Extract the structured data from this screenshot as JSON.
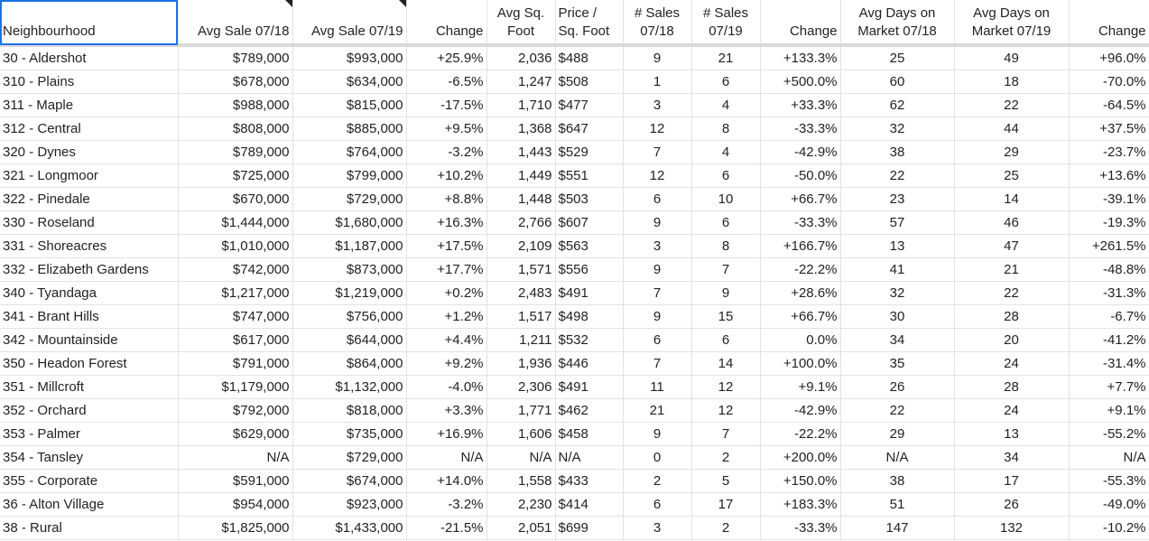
{
  "headers": [
    "Neighbourhood",
    "Avg Sale 07/18",
    "Avg Sale 07/19",
    "Change",
    "Avg Sq. Foot",
    "Price / Sq. Foot",
    "# Sales 07/18",
    "# Sales 07/19",
    "Change",
    "Avg Days on Market 07/18",
    "Avg Days on Market 07/19",
    "Change"
  ],
  "rows": [
    [
      "30 - Aldershot",
      "$789,000",
      "$993,000",
      "+25.9%",
      "2,036",
      "$488",
      "9",
      "21",
      "+133.3%",
      "25",
      "49",
      "+96.0%"
    ],
    [
      "310 - Plains",
      "$678,000",
      "$634,000",
      "-6.5%",
      "1,247",
      "$508",
      "1",
      "6",
      "+500.0%",
      "60",
      "18",
      "-70.0%"
    ],
    [
      "311 - Maple",
      "$988,000",
      "$815,000",
      "-17.5%",
      "1,710",
      "$477",
      "3",
      "4",
      "+33.3%",
      "62",
      "22",
      "-64.5%"
    ],
    [
      "312 - Central",
      "$808,000",
      "$885,000",
      "+9.5%",
      "1,368",
      "$647",
      "12",
      "8",
      "-33.3%",
      "32",
      "44",
      "+37.5%"
    ],
    [
      "320 - Dynes",
      "$789,000",
      "$764,000",
      "-3.2%",
      "1,443",
      "$529",
      "7",
      "4",
      "-42.9%",
      "38",
      "29",
      "-23.7%"
    ],
    [
      "321 - Longmoor",
      "$725,000",
      "$799,000",
      "+10.2%",
      "1,449",
      "$551",
      "12",
      "6",
      "-50.0%",
      "22",
      "25",
      "+13.6%"
    ],
    [
      "322 - Pinedale",
      "$670,000",
      "$729,000",
      "+8.8%",
      "1,448",
      "$503",
      "6",
      "10",
      "+66.7%",
      "23",
      "14",
      "-39.1%"
    ],
    [
      "330 - Roseland",
      "$1,444,000",
      "$1,680,000",
      "+16.3%",
      "2,766",
      "$607",
      "9",
      "6",
      "-33.3%",
      "57",
      "46",
      "-19.3%"
    ],
    [
      "331 - Shoreacres",
      "$1,010,000",
      "$1,187,000",
      "+17.5%",
      "2,109",
      "$563",
      "3",
      "8",
      "+166.7%",
      "13",
      "47",
      "+261.5%"
    ],
    [
      "332 - Elizabeth Gardens",
      "$742,000",
      "$873,000",
      "+17.7%",
      "1,571",
      "$556",
      "9",
      "7",
      "-22.2%",
      "41",
      "21",
      "-48.8%"
    ],
    [
      "340 - Tyandaga",
      "$1,217,000",
      "$1,219,000",
      "+0.2%",
      "2,483",
      "$491",
      "7",
      "9",
      "+28.6%",
      "32",
      "22",
      "-31.3%"
    ],
    [
      "341 - Brant Hills",
      "$747,000",
      "$756,000",
      "+1.2%",
      "1,517",
      "$498",
      "9",
      "15",
      "+66.7%",
      "30",
      "28",
      "-6.7%"
    ],
    [
      "342 - Mountainside",
      "$617,000",
      "$644,000",
      "+4.4%",
      "1,211",
      "$532",
      "6",
      "6",
      "0.0%",
      "34",
      "20",
      "-41.2%"
    ],
    [
      "350 - Headon Forest",
      "$791,000",
      "$864,000",
      "+9.2%",
      "1,936",
      "$446",
      "7",
      "14",
      "+100.0%",
      "35",
      "24",
      "-31.4%"
    ],
    [
      "351 - Millcroft",
      "$1,179,000",
      "$1,132,000",
      "-4.0%",
      "2,306",
      "$491",
      "11",
      "12",
      "+9.1%",
      "26",
      "28",
      "+7.7%"
    ],
    [
      "352 - Orchard",
      "$792,000",
      "$818,000",
      "+3.3%",
      "1,771",
      "$462",
      "21",
      "12",
      "-42.9%",
      "22",
      "24",
      "+9.1%"
    ],
    [
      "353 - Palmer",
      "$629,000",
      "$735,000",
      "+16.9%",
      "1,606",
      "$458",
      "9",
      "7",
      "-22.2%",
      "29",
      "13",
      "-55.2%"
    ],
    [
      "354 - Tansley",
      "N/A",
      "$729,000",
      "N/A",
      "N/A",
      "N/A",
      "0",
      "2",
      "+200.0%",
      "N/A",
      "34",
      "N/A"
    ],
    [
      "355 - Corporate",
      "$591,000",
      "$674,000",
      "+14.0%",
      "1,558",
      "$433",
      "2",
      "5",
      "+150.0%",
      "38",
      "17",
      "-55.3%"
    ],
    [
      "36 - Alton Village",
      "$954,000",
      "$923,000",
      "-3.2%",
      "2,230",
      "$414",
      "6",
      "17",
      "+183.3%",
      "51",
      "26",
      "-49.0%"
    ],
    [
      "38 - Rural",
      "$1,825,000",
      "$1,433,000",
      "-21.5%",
      "2,051",
      "$699",
      "3",
      "2",
      "-33.3%",
      "147",
      "132",
      "-10.2%"
    ]
  ]
}
